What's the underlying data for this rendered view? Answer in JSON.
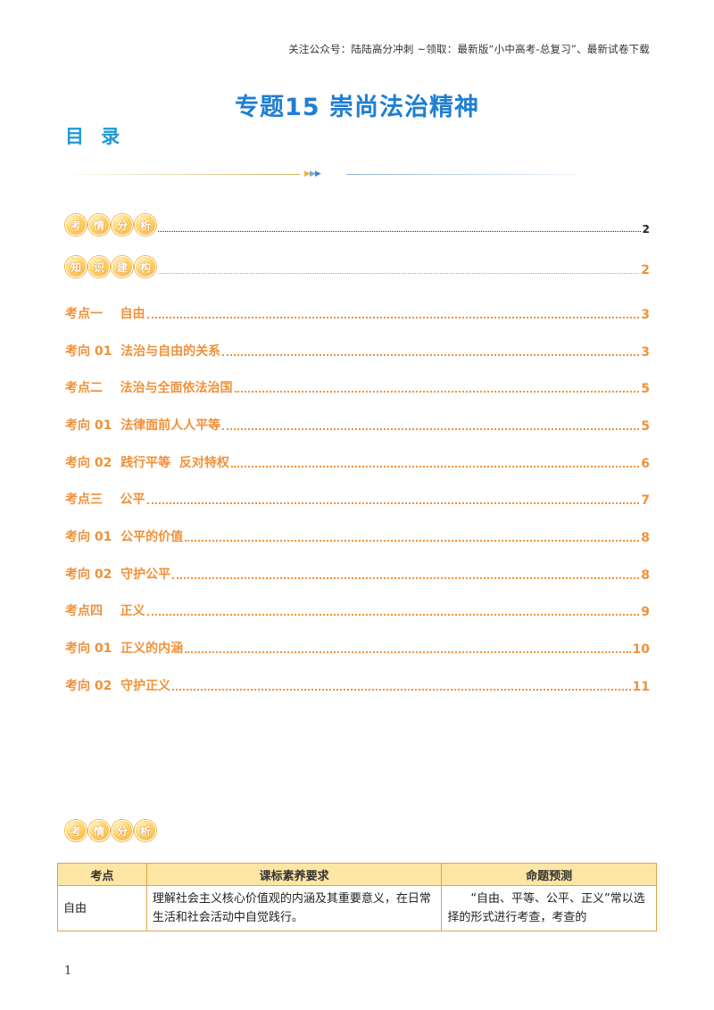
{
  "header": {
    "note": "关注公众号：陆陆高分冲刺 ~领取：最新版“小中高考-总复习”、最新试卷下载"
  },
  "title": "专题15  崇尚法治精神",
  "toc_heading": "目 录",
  "badges": {
    "analysis": [
      "考",
      "情",
      "分",
      "析"
    ],
    "knowledge": [
      "知",
      "识",
      "建",
      "构"
    ]
  },
  "toc": {
    "analysis_page": "2",
    "knowledge_page": "2",
    "entries": [
      {
        "label": "考点一    自由",
        "page": "3"
      },
      {
        "label": "考向 01  法治与自由的关系",
        "page": "3"
      },
      {
        "label": "考点二    法治与全面依法治国",
        "page": "5"
      },
      {
        "label": "考向 01  法律面前人人平等",
        "page": "5"
      },
      {
        "label": "考向 02  践行平等  反对特权",
        "page": "6"
      },
      {
        "label": "考点三    公平",
        "page": "7"
      },
      {
        "label": "考向 01  公平的价值",
        "page": "8"
      },
      {
        "label": "考向 02  守护公平",
        "page": "8"
      },
      {
        "label": "考点四    正义",
        "page": "9"
      },
      {
        "label": "考向 01  正义的内涵",
        "page": "10"
      },
      {
        "label": "考向 02  守护正义",
        "page": "11"
      }
    ]
  },
  "analysis_table": {
    "headers": [
      "考点",
      "课标素养要求",
      "命题预测"
    ],
    "rows": [
      {
        "topic": "自由",
        "requirement": "理解社会主义核心价值观的内涵及其重要意义，在日常生活和社会活动中自觉践行。",
        "prediction": "“自由、平等、公平、正义”常以选择的形式进行考查，考查的"
      }
    ]
  },
  "page_number": "1"
}
